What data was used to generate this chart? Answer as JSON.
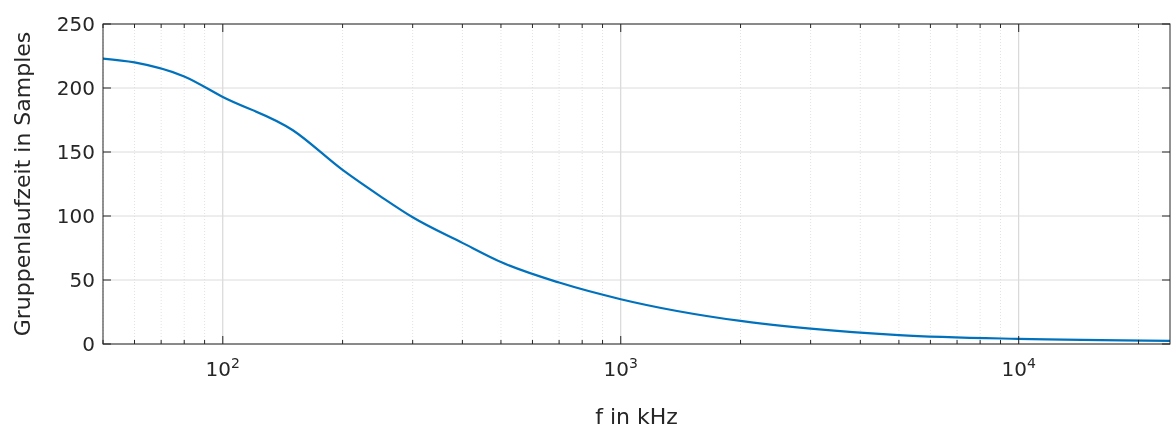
{
  "chart_data": {
    "type": "line",
    "xlabel": "f in kHz",
    "ylabel": "Gruppenlaufzeit in Samples",
    "log": "x",
    "grid": true,
    "marker": "none",
    "line_style": "solid",
    "xlim": [
      50,
      24000
    ],
    "ylim": [
      0,
      250
    ],
    "yticks": [
      0,
      50,
      100,
      150,
      200,
      250
    ],
    "xticks": [
      {
        "value": 50,
        "label": null
      },
      {
        "value": 60,
        "label": null
      },
      {
        "value": 70,
        "label": null
      },
      {
        "value": 80,
        "label": null
      },
      {
        "value": 90,
        "label": null
      },
      {
        "value": 100,
        "label": "10$^{2}$"
      },
      {
        "value": 200,
        "label": null
      },
      {
        "value": 300,
        "label": null
      },
      {
        "value": 400,
        "label": null
      },
      {
        "value": 500,
        "label": null
      },
      {
        "value": 600,
        "label": null
      },
      {
        "value": 700,
        "label": null
      },
      {
        "value": 800,
        "label": null
      },
      {
        "value": 900,
        "label": null
      },
      {
        "value": 1000,
        "label": "10$^{3}$"
      },
      {
        "value": 2000,
        "label": null
      },
      {
        "value": 3000,
        "label": null
      },
      {
        "value": 4000,
        "label": null
      },
      {
        "value": 5000,
        "label": null
      },
      {
        "value": 6000,
        "label": null
      },
      {
        "value": 7000,
        "label": null
      },
      {
        "value": 8000,
        "label": null
      },
      {
        "value": 9000,
        "label": null
      },
      {
        "value": 10000,
        "label": "10$^{4}$"
      },
      {
        "value": 20000,
        "label": null
      }
    ],
    "series": [
      {
        "color": "#0072bd",
        "x": [
          50,
          60,
          80,
          100,
          150,
          200,
          250,
          300,
          400,
          500,
          700,
          1000,
          2000,
          3000,
          5000,
          10000,
          24000
        ],
        "values": [
          223,
          220,
          209,
          193,
          167,
          136,
          115,
          99,
          79,
          64,
          48,
          35,
          18,
          12,
          7,
          4,
          2.5
        ]
      }
    ]
  }
}
